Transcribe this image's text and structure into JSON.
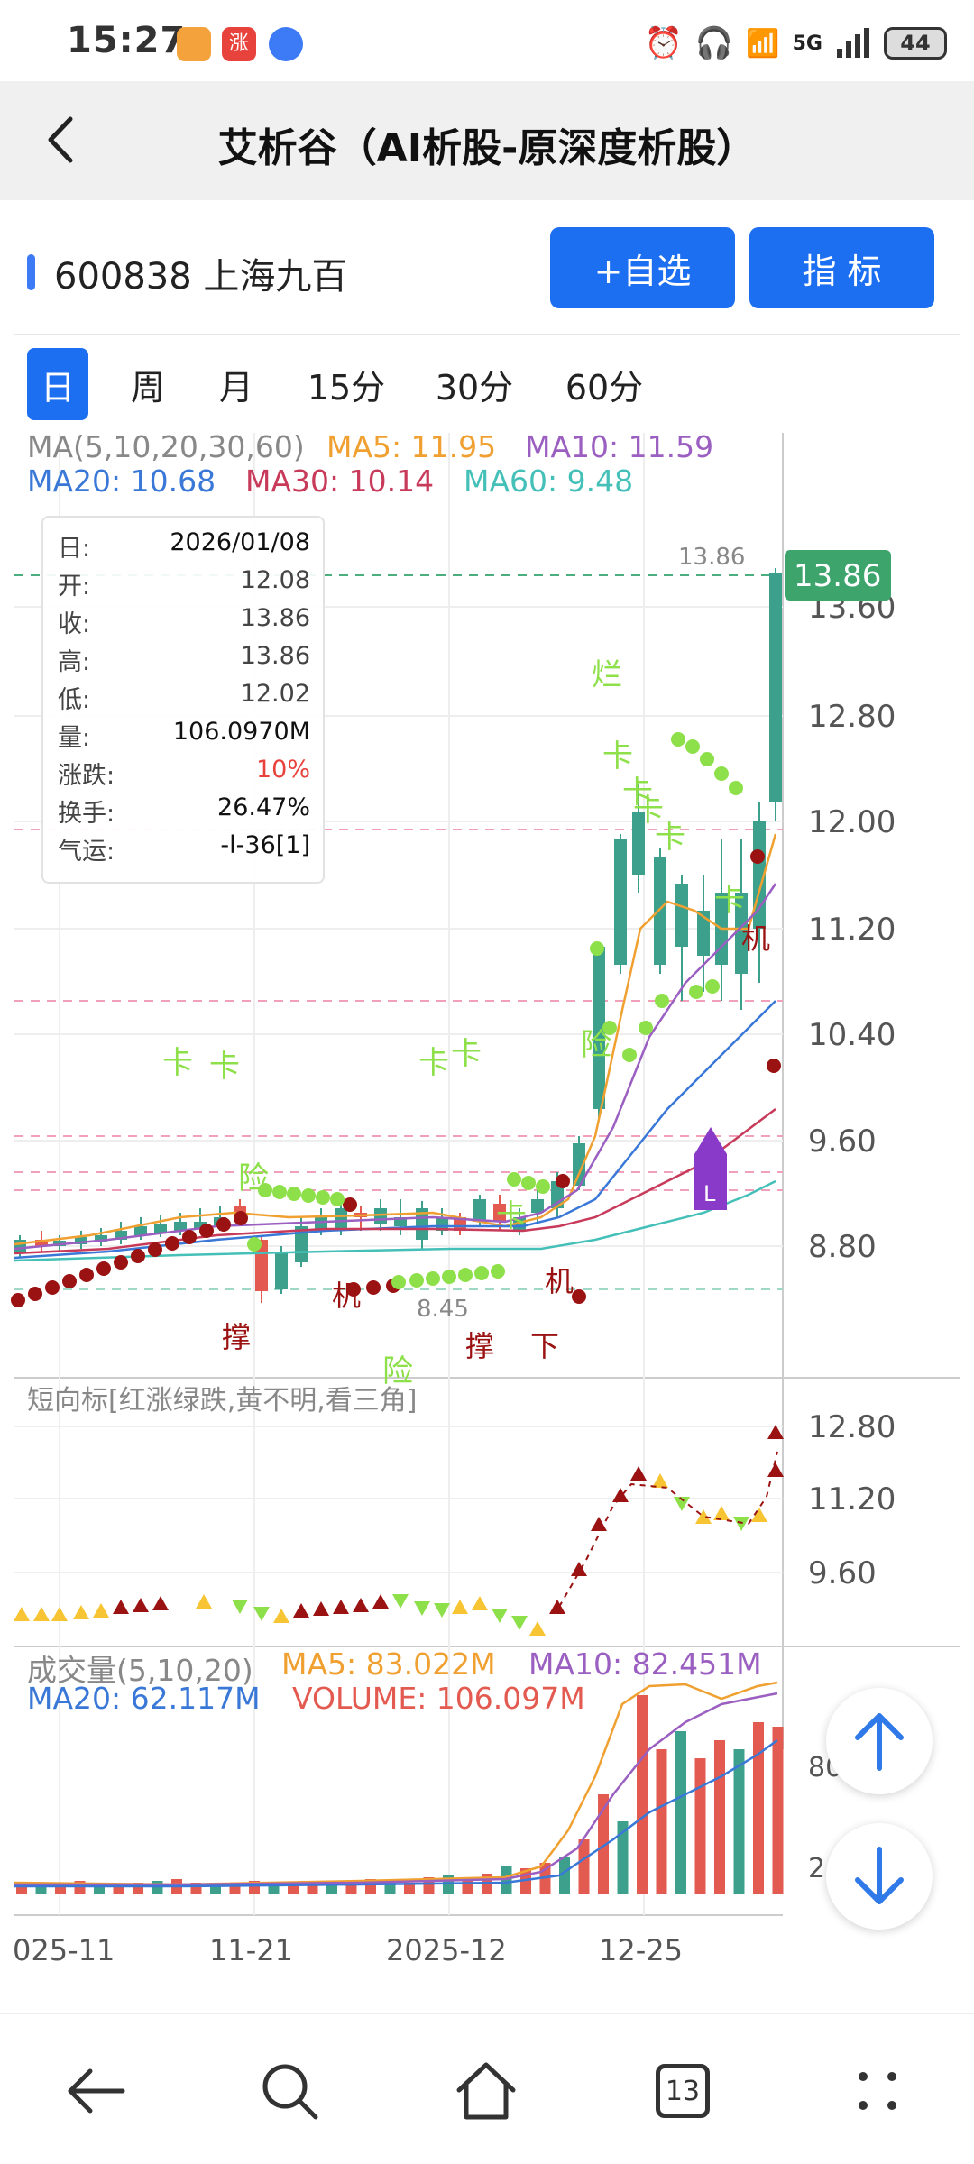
{
  "status_bar": {
    "time": "15:27",
    "battery": "44",
    "network": "5G"
  },
  "nav": {
    "title": "艾析谷（AI析股-原深度析股）"
  },
  "stock": {
    "code_name": "600838 上海九百"
  },
  "buttons": {
    "watchlist": "+自选",
    "indicator": "指  标"
  },
  "periods": [
    "日",
    "周",
    "月",
    "15分",
    "30分",
    "60分"
  ],
  "ma_legend": {
    "params": "MA(5,10,20,30,60)",
    "ma5": "MA5: 11.95",
    "ma10": "MA10: 11.59",
    "ma20": "MA20: 10.68",
    "ma30": "MA30: 10.14",
    "ma60": "MA60: 9.48"
  },
  "info": [
    {
      "k": "日:",
      "v": "2026/01/08"
    },
    {
      "k": "开:",
      "v": "12.08"
    },
    {
      "k": "收:",
      "v": "13.86"
    },
    {
      "k": "高:",
      "v": "13.86"
    },
    {
      "k": "低:",
      "v": "12.02"
    },
    {
      "k": "量:",
      "v": "106.0970M"
    },
    {
      "k": "涨跌:",
      "v": "10%"
    },
    {
      "k": "换手:",
      "v": "26.47%"
    },
    {
      "k": "气运:",
      "v": "-l-36[1]"
    }
  ],
  "price_axis": [
    "13.60",
    "12.80",
    "12.00",
    "11.20",
    "10.40",
    "9.60",
    "8.80"
  ],
  "price_tag": "13.86",
  "max_label": "13.86",
  "min_label": "8.45",
  "annotations": {
    "zhuo": "烂",
    "xian": "险",
    "ji": "机",
    "cheng": "撑",
    "xia": "下",
    "l_marker": "L"
  },
  "short_indicator": {
    "title": "短向标[红涨绿跌,黄不明,看三角]",
    "axis": [
      "12.80",
      "11.20",
      "9.60"
    ]
  },
  "volume": {
    "params": "成交量(5,10,20)",
    "ma5": "MA5: 83.022M",
    "ma10": "MA10: 82.451M",
    "ma20": "MA20: 62.117M",
    "vol": "VOLUME: 106.097M",
    "axis": [
      "80",
      "2"
    ]
  },
  "x_axis": [
    "025-11",
    "11-21",
    "2025-12",
    "12-25"
  ],
  "bottom_nav": {
    "tabs_count": "13"
  },
  "colors": {
    "accent": "#1d6ff2",
    "up": "#e35a50",
    "down": "#3da08c",
    "ma5": "#f0a030",
    "ma10": "#9a5fc0",
    "ma20": "#3a78d8",
    "ma30": "#c83a5a",
    "ma60": "#45c0b8",
    "green_dot": "#8ee04a",
    "dark_red": "#9b1212"
  }
}
